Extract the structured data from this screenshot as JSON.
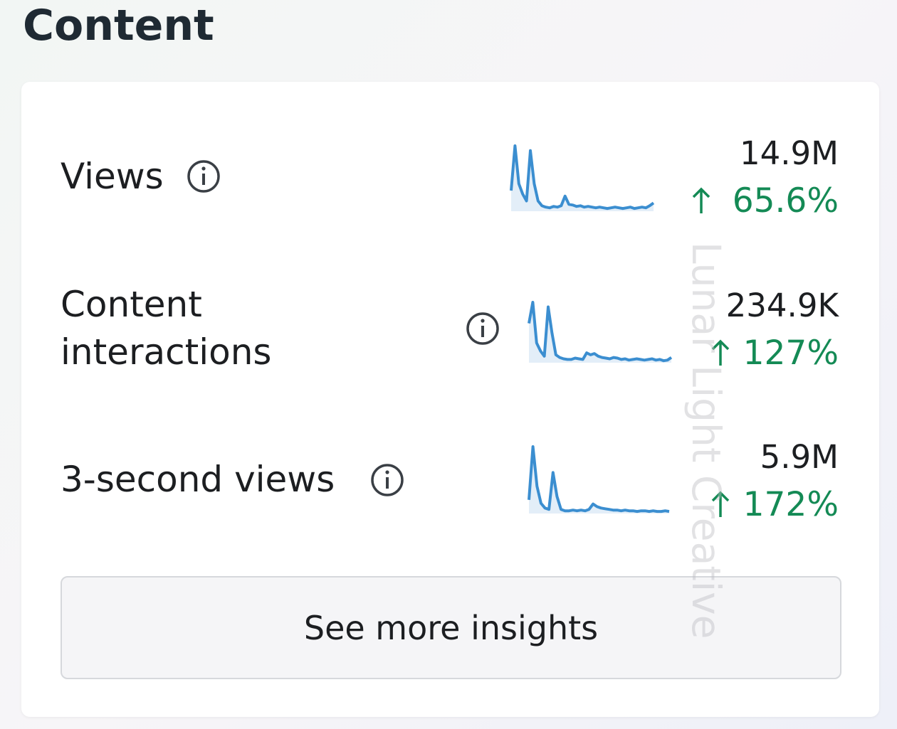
{
  "header": {
    "title": "Content"
  },
  "metrics": [
    {
      "label": "Views",
      "value": "14.9M",
      "change": "65.6%",
      "sparkline": [
        30,
        95,
        40,
        25,
        15,
        88,
        40,
        15,
        8,
        6,
        5,
        7,
        6,
        8,
        22,
        10,
        9,
        7,
        8,
        6,
        7,
        6,
        5,
        6,
        5,
        4,
        5,
        6,
        5,
        4,
        5,
        6,
        4,
        5,
        6,
        5,
        8,
        12
      ]
    },
    {
      "label": "Content interactions",
      "value": "234.9K",
      "change": "127%",
      "sparkline": [
        60,
        92,
        30,
        18,
        10,
        85,
        45,
        12,
        8,
        6,
        5,
        5,
        7,
        6,
        5,
        15,
        12,
        14,
        10,
        8,
        7,
        6,
        8,
        7,
        5,
        6,
        4,
        5,
        6,
        5,
        4,
        5,
        6,
        4,
        5,
        3,
        4,
        8
      ]
    },
    {
      "label": "3-second views",
      "value": "5.9M",
      "change": "172%",
      "sparkline": [
        20,
        98,
        40,
        15,
        8,
        6,
        60,
        25,
        6,
        4,
        4,
        5,
        4,
        5,
        4,
        6,
        14,
        10,
        8,
        7,
        6,
        5,
        5,
        4,
        5,
        4,
        4,
        3,
        4,
        4,
        3,
        4,
        3,
        3,
        4,
        3
      ]
    }
  ],
  "button": {
    "label": "See more insights"
  },
  "watermark": "Lunar Light Creative"
}
